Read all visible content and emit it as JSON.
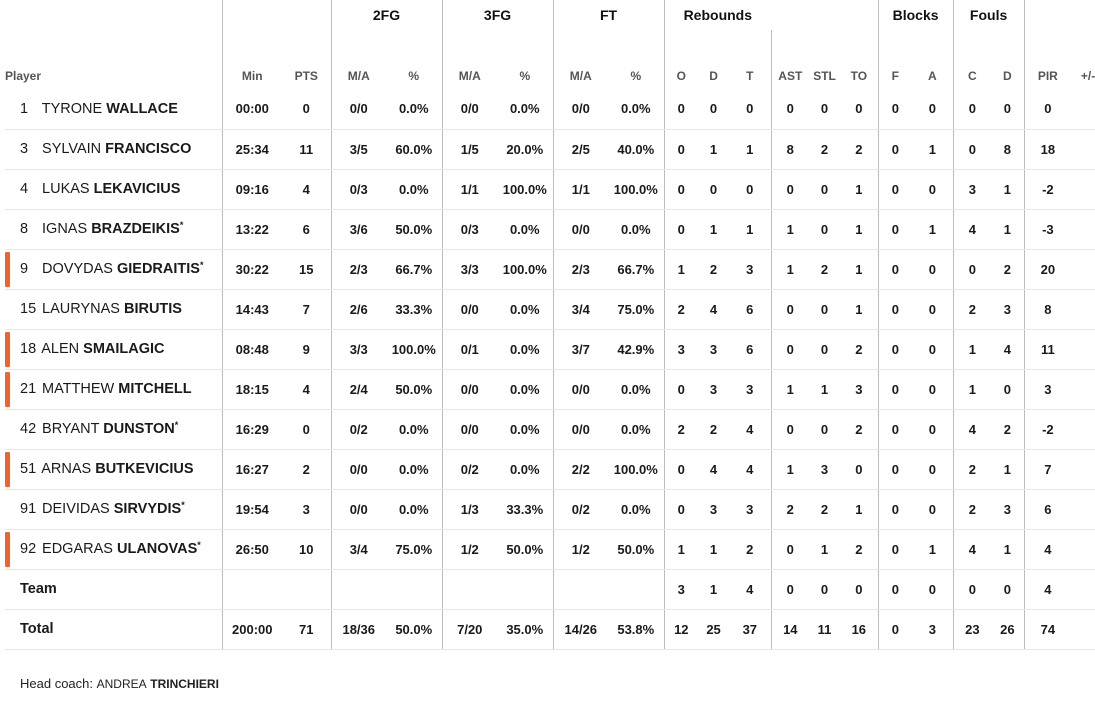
{
  "groups": {
    "fg2": "2FG",
    "fg3": "3FG",
    "ft": "FT",
    "reb": "Rebounds",
    "blk": "Blocks",
    "fouls": "Fouls"
  },
  "columns": {
    "player": "Player",
    "min": "Min",
    "pts": "PTS",
    "fg2_ma": "M/A",
    "fg2_pct": "%",
    "fg3_ma": "M/A",
    "fg3_pct": "%",
    "ft_ma": "M/A",
    "ft_pct": "%",
    "o": "O",
    "d": "D",
    "t": "T",
    "ast": "AST",
    "stl": "STL",
    "to": "TO",
    "f": "F",
    "a": "A",
    "c": "C",
    "fd": "D",
    "pir": "PIR",
    "pm": "+/-"
  },
  "accent_color": "#f0632f",
  "players": [
    {
      "num": "1",
      "first": "TYRONE",
      "last": "WALLACE",
      "star": "",
      "bar": false,
      "stats": [
        "00:00",
        "0",
        "0/0",
        "0.0%",
        "0/0",
        "0.0%",
        "0/0",
        "0.0%",
        "0",
        "0",
        "0",
        "0",
        "0",
        "0",
        "0",
        "0",
        "0",
        "0",
        "0",
        ""
      ]
    },
    {
      "num": "3",
      "first": "SYLVAIN",
      "last": "FRANCISCO",
      "star": "",
      "bar": false,
      "stats": [
        "25:34",
        "11",
        "3/5",
        "60.0%",
        "1/5",
        "20.0%",
        "2/5",
        "40.0%",
        "0",
        "1",
        "1",
        "8",
        "2",
        "2",
        "0",
        "1",
        "0",
        "8",
        "18",
        ""
      ]
    },
    {
      "num": "4",
      "first": "LUKAS",
      "last": "LEKAVICIUS",
      "star": "",
      "bar": false,
      "stats": [
        "09:16",
        "4",
        "0/3",
        "0.0%",
        "1/1",
        "100.0%",
        "1/1",
        "100.0%",
        "0",
        "0",
        "0",
        "0",
        "0",
        "1",
        "0",
        "0",
        "3",
        "1",
        "-2",
        ""
      ]
    },
    {
      "num": "8",
      "first": "IGNAS",
      "last": "BRAZDEIKIS",
      "star": "*",
      "bar": false,
      "stats": [
        "13:22",
        "6",
        "3/6",
        "50.0%",
        "0/3",
        "0.0%",
        "0/0",
        "0.0%",
        "0",
        "1",
        "1",
        "1",
        "0",
        "1",
        "0",
        "1",
        "4",
        "1",
        "-3",
        ""
      ]
    },
    {
      "num": "9",
      "first": "DOVYDAS",
      "last": "GIEDRAITIS",
      "star": "*",
      "bar": true,
      "stats": [
        "30:22",
        "15",
        "2/3",
        "66.7%",
        "3/3",
        "100.0%",
        "2/3",
        "66.7%",
        "1",
        "2",
        "3",
        "1",
        "2",
        "1",
        "0",
        "0",
        "0",
        "2",
        "20",
        ""
      ]
    },
    {
      "num": "15",
      "first": "LAURYNAS",
      "last": "BIRUTIS",
      "star": "",
      "bar": false,
      "stats": [
        "14:43",
        "7",
        "2/6",
        "33.3%",
        "0/0",
        "0.0%",
        "3/4",
        "75.0%",
        "2",
        "4",
        "6",
        "0",
        "0",
        "1",
        "0",
        "0",
        "2",
        "3",
        "8",
        ""
      ]
    },
    {
      "num": "18",
      "first": "ALEN",
      "last": "SMAILAGIC",
      "star": "",
      "bar": true,
      "stats": [
        "08:48",
        "9",
        "3/3",
        "100.0%",
        "0/1",
        "0.0%",
        "3/7",
        "42.9%",
        "3",
        "3",
        "6",
        "0",
        "0",
        "2",
        "0",
        "0",
        "1",
        "4",
        "11",
        ""
      ]
    },
    {
      "num": "21",
      "first": "MATTHEW",
      "last": "MITCHELL",
      "star": "",
      "bar": true,
      "stats": [
        "18:15",
        "4",
        "2/4",
        "50.0%",
        "0/0",
        "0.0%",
        "0/0",
        "0.0%",
        "0",
        "3",
        "3",
        "1",
        "1",
        "3",
        "0",
        "0",
        "1",
        "0",
        "3",
        ""
      ]
    },
    {
      "num": "42",
      "first": "BRYANT",
      "last": "DUNSTON",
      "star": "*",
      "bar": false,
      "stats": [
        "16:29",
        "0",
        "0/2",
        "0.0%",
        "0/0",
        "0.0%",
        "0/0",
        "0.0%",
        "2",
        "2",
        "4",
        "0",
        "0",
        "2",
        "0",
        "0",
        "4",
        "2",
        "-2",
        ""
      ]
    },
    {
      "num": "51",
      "first": "ARNAS",
      "last": "BUTKEVICIUS",
      "star": "",
      "bar": true,
      "stats": [
        "16:27",
        "2",
        "0/0",
        "0.0%",
        "0/2",
        "0.0%",
        "2/2",
        "100.0%",
        "0",
        "4",
        "4",
        "1",
        "3",
        "0",
        "0",
        "0",
        "2",
        "1",
        "7",
        ""
      ]
    },
    {
      "num": "91",
      "first": "DEIVIDAS",
      "last": "SIRVYDIS",
      "star": "*",
      "bar": false,
      "stats": [
        "19:54",
        "3",
        "0/0",
        "0.0%",
        "1/3",
        "33.3%",
        "0/2",
        "0.0%",
        "0",
        "3",
        "3",
        "2",
        "2",
        "1",
        "0",
        "0",
        "2",
        "3",
        "6",
        ""
      ]
    },
    {
      "num": "92",
      "first": "EDGARAS",
      "last": "ULANOVAS",
      "star": "*",
      "bar": true,
      "stats": [
        "26:50",
        "10",
        "3/4",
        "75.0%",
        "1/2",
        "50.0%",
        "1/2",
        "50.0%",
        "1",
        "1",
        "2",
        "0",
        "1",
        "2",
        "0",
        "1",
        "4",
        "1",
        "4",
        ""
      ]
    }
  ],
  "team": {
    "label": "Team",
    "stats": [
      "",
      "",
      "",
      "",
      "",
      "",
      "",
      "",
      "3",
      "1",
      "4",
      "0",
      "0",
      "0",
      "0",
      "0",
      "0",
      "0",
      "4",
      ""
    ]
  },
  "total": {
    "label": "Total",
    "stats": [
      "200:00",
      "71",
      "18/36",
      "50.0%",
      "7/20",
      "35.0%",
      "14/26",
      "53.8%",
      "12",
      "25",
      "37",
      "14",
      "11",
      "16",
      "0",
      "3",
      "23",
      "26",
      "74",
      ""
    ]
  },
  "coach": {
    "label": "Head coach:",
    "first": "ANDREA",
    "last": "TRINCHIERI"
  }
}
